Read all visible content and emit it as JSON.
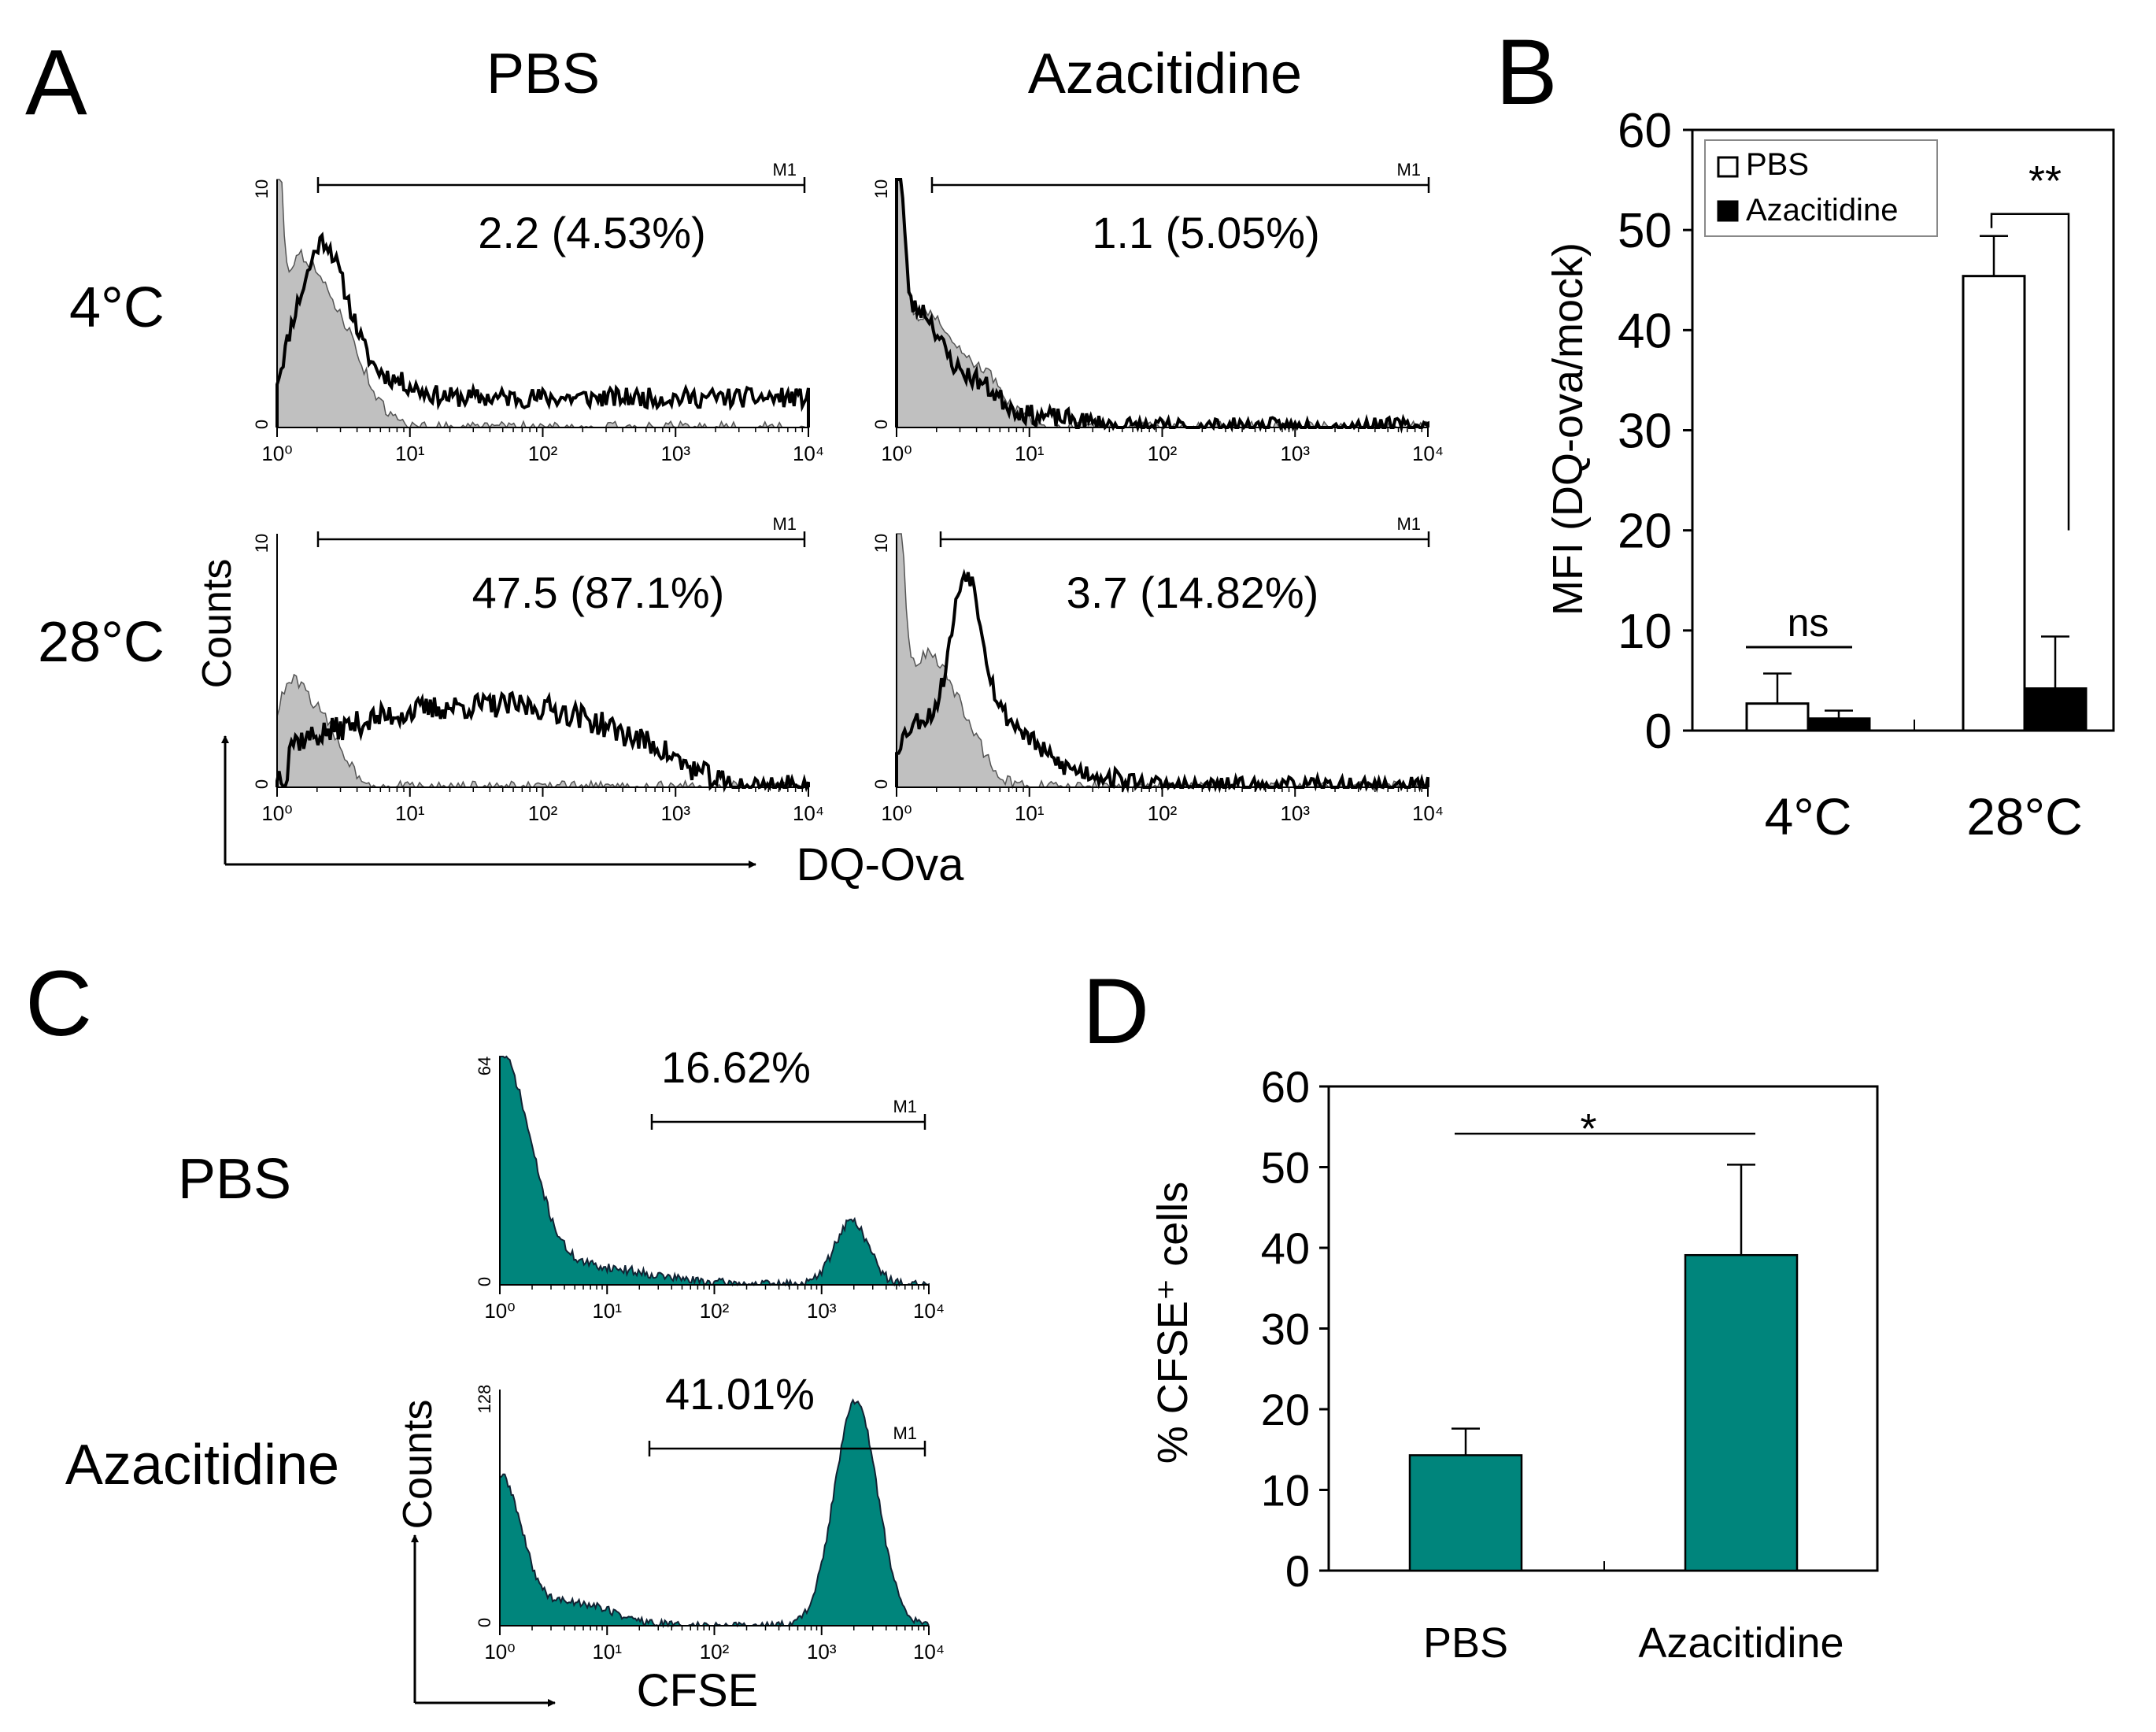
{
  "colors": {
    "teal": "#00857c",
    "gray": "#c0c0c0",
    "black": "#000000",
    "white": "#ffffff"
  },
  "panel_labels": {
    "a": "A",
    "b": "B",
    "c": "C",
    "d": "D"
  },
  "panel_a": {
    "col_headers": [
      "PBS",
      "Azacitidine"
    ],
    "row_labels": [
      "4°C",
      "28°C"
    ],
    "y_axis_label": "Counts",
    "x_axis_label": "DQ-Ova",
    "plots": [
      {
        "id": "pbs-4c",
        "stat": "2.2 (4.53%)",
        "gate": "M1",
        "ymax_tick": "10",
        "ymin_tick": "0"
      },
      {
        "id": "aza-4c",
        "stat": "1.1 (5.05%)",
        "gate": "M1",
        "ymax_tick": "10",
        "ymin_tick": "0"
      },
      {
        "id": "pbs-28c",
        "stat": "47.5 (87.1%)",
        "gate": "M1",
        "ymax_tick": "10",
        "ymin_tick": "0"
      },
      {
        "id": "aza-28c",
        "stat": "3.7 (14.82%)",
        "gate": "M1",
        "ymax_tick": "10",
        "ymin_tick": "0"
      }
    ],
    "log_ticks": [
      "10⁰",
      "10¹",
      "10²",
      "10³",
      "10⁴"
    ]
  },
  "panel_c": {
    "row_labels": [
      "PBS",
      "Azacitidine"
    ],
    "y_axis_label": "Counts",
    "x_axis_label": "CFSE",
    "plots": [
      {
        "id": "pbs",
        "stat": "16.62%",
        "gate": "M1",
        "ymax_tick": "64",
        "ymin_tick": "0"
      },
      {
        "id": "aza",
        "stat": "41.01%",
        "gate": "M1",
        "ymax_tick": "128",
        "ymin_tick": "0"
      }
    ],
    "log_ticks": [
      "10⁰",
      "10¹",
      "10²",
      "10³",
      "10⁴"
    ]
  },
  "chart_data": [
    {
      "panel": "B",
      "type": "bar",
      "categories": [
        "4°C",
        "28°C"
      ],
      "series": [
        {
          "name": "PBS",
          "values": [
            2.7,
            45.4
          ],
          "errors": [
            3.0,
            4.0
          ],
          "color": "#ffffff"
        },
        {
          "name": "Azacitidine",
          "values": [
            1.2,
            4.2
          ],
          "errors": [
            0.8,
            5.2
          ],
          "color": "#000000"
        }
      ],
      "ylabel": "MFI (DQ-ova/mock)",
      "ylim": [
        0,
        60
      ],
      "yticks": [
        0,
        10,
        20,
        30,
        40,
        50,
        60
      ],
      "legend": "top-left",
      "significance": [
        {
          "category": "4°C",
          "label": "ns"
        },
        {
          "category": "28°C",
          "label": "**"
        }
      ]
    },
    {
      "panel": "D",
      "type": "bar",
      "categories": [
        "PBS",
        "Azacitidine"
      ],
      "values": [
        14.3,
        39.1
      ],
      "errors": [
        3.3,
        11.2
      ],
      "ylabel": "% CFSE⁺ cells",
      "ylim": [
        0,
        60
      ],
      "yticks": [
        0,
        10,
        20,
        30,
        40,
        50,
        60
      ],
      "significance": "*"
    }
  ]
}
